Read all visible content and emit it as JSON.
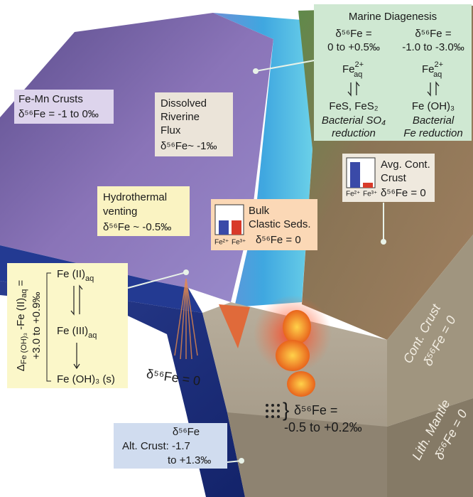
{
  "marine_diagenesis": {
    "title": "Marine Diagenesis",
    "left": {
      "delta": "δ⁵⁶Fe =",
      "range": "0 to +0.5‰",
      "species": [
        "Fe",
        "2+",
        "aq"
      ],
      "product": "FeS, FeS₂",
      "process": [
        "Bacterial SO₄",
        "reduction"
      ]
    },
    "right": {
      "delta": "δ⁵⁶Fe =",
      "range": "-1.0 to -3.0‰",
      "species": [
        "Fe",
        "2+",
        "aq"
      ],
      "product": "Fe (OH)₃",
      "process": [
        "Bacterial",
        "Fe reduction"
      ]
    }
  },
  "fe_mn_crusts": {
    "lines": [
      "Fe-Mn Crusts",
      "δ⁵⁶Fe = -1 to 0‰"
    ]
  },
  "riverine_flux": {
    "lines": [
      "Dissolved",
      "Riverine",
      "Flux",
      "δ⁵⁶Fe~ -1‰"
    ]
  },
  "avg_cont_crust": {
    "lines": [
      "Avg. Cont.",
      "Crust",
      "δ⁵⁶Fe = 0"
    ],
    "bar_labels": [
      "Fe²⁺",
      "Fe³⁺"
    ]
  },
  "hydrothermal": {
    "lines": [
      "Hydrothermal",
      "venting",
      "δ⁵⁶Fe ~ -0.5‰"
    ]
  },
  "bulk_clastic": {
    "lines": [
      "Bulk",
      "Clastic Seds.",
      "δ⁵⁶Fe = 0"
    ],
    "bar_labels": [
      "Fe²⁺",
      "Fe³⁺"
    ]
  },
  "fractionation": {
    "delta": [
      "Δ",
      "Fe (OH)₃",
      " -Fe (II)",
      "aq",
      " ="
    ],
    "range": "+3.0  to  +0.9‰",
    "steps": [
      [
        "Fe (II)",
        "aq"
      ],
      [
        "Fe (III)",
        "aq"
      ],
      [
        "Fe (OH)₃ (s)"
      ]
    ]
  },
  "vent_fluid": "δ⁵⁶Fe = 0",
  "cont_crust": [
    "Cont. Crust",
    "δ⁵⁶Fe = 0"
  ],
  "lith_mantle": [
    "Lith. Mantle",
    "δ⁵⁶Fe = 0"
  ],
  "magma": [
    "δ⁵⁶Fe =",
    "-0.5 to +0.2‰"
  ],
  "alt_crust": {
    "lines": [
      "δ⁵⁶Fe",
      "Alt. Crust:  -1.7",
      "to +1.3‰"
    ]
  }
}
